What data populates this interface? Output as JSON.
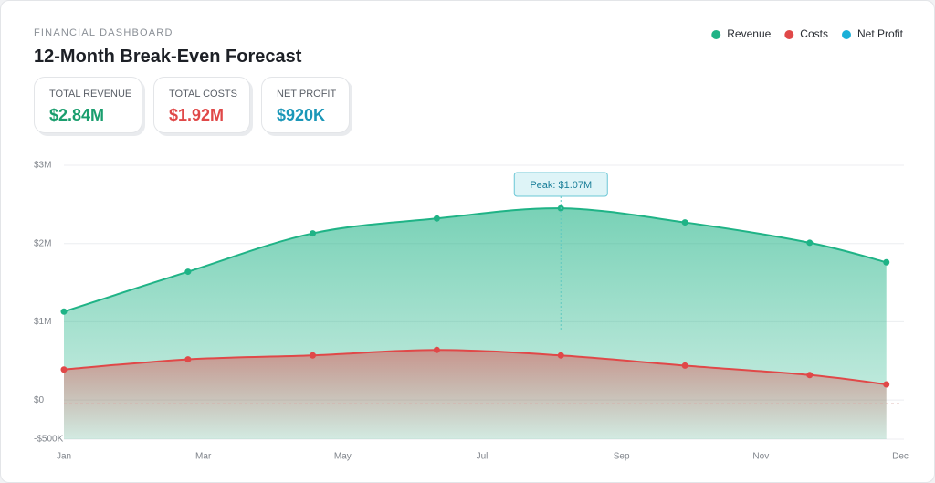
{
  "header": {
    "kicker": "FINANCIAL DASHBOARD",
    "title": "12-Month Break-Even Forecast"
  },
  "kpis": [
    {
      "label": "TOTAL REVENUE",
      "value": "$2.84M",
      "color": "#1a9e6e"
    },
    {
      "label": "TOTAL COSTS",
      "value": "$1.92M",
      "color": "#e04848"
    },
    {
      "label": "NET PROFIT",
      "value": "$920K",
      "color": "#1b97b8"
    }
  ],
  "chart_data": {
    "type": "area",
    "x": [
      0,
      1.78,
      3.57,
      5.35,
      7.13,
      8.91,
      10.7,
      11.8
    ],
    "series": [
      {
        "name": "Revenue",
        "color": "#1fb386",
        "values": [
          1130000,
          1640000,
          2130000,
          2320000,
          2450000,
          2270000,
          2010000,
          1760000
        ]
      },
      {
        "name": "Costs",
        "color": "#e04848",
        "values": [
          390000,
          520000,
          570000,
          640000,
          570000,
          440000,
          320000,
          200000
        ]
      },
      {
        "name": "Net Profit",
        "color": "#1ab0d8",
        "values": [
          null,
          null,
          null,
          null,
          null,
          null,
          null,
          null
        ]
      }
    ],
    "xlim": [
      0,
      12
    ],
    "xticks": [
      {
        "value": 0,
        "label": "Jan"
      },
      {
        "value": 2,
        "label": "Mar"
      },
      {
        "value": 4,
        "label": "May"
      },
      {
        "value": 6,
        "label": "Jul"
      },
      {
        "value": 8,
        "label": "Sep"
      },
      {
        "value": 10,
        "label": "Nov"
      },
      {
        "value": 12,
        "label": "Dec"
      }
    ],
    "ylim": [
      -500000,
      3000000
    ],
    "yticks": [
      {
        "value": -500000,
        "label": "-$500K"
      },
      {
        "value": 0,
        "label": "$0"
      },
      {
        "value": 1000000,
        "label": "$1M"
      },
      {
        "value": 2000000,
        "label": "$2M"
      },
      {
        "value": 3000000,
        "label": "$3M"
      }
    ],
    "grid": true,
    "legend": "top-right",
    "annotations": [
      {
        "text": "Peak: $1.07M",
        "x": 7.13
      }
    ]
  }
}
